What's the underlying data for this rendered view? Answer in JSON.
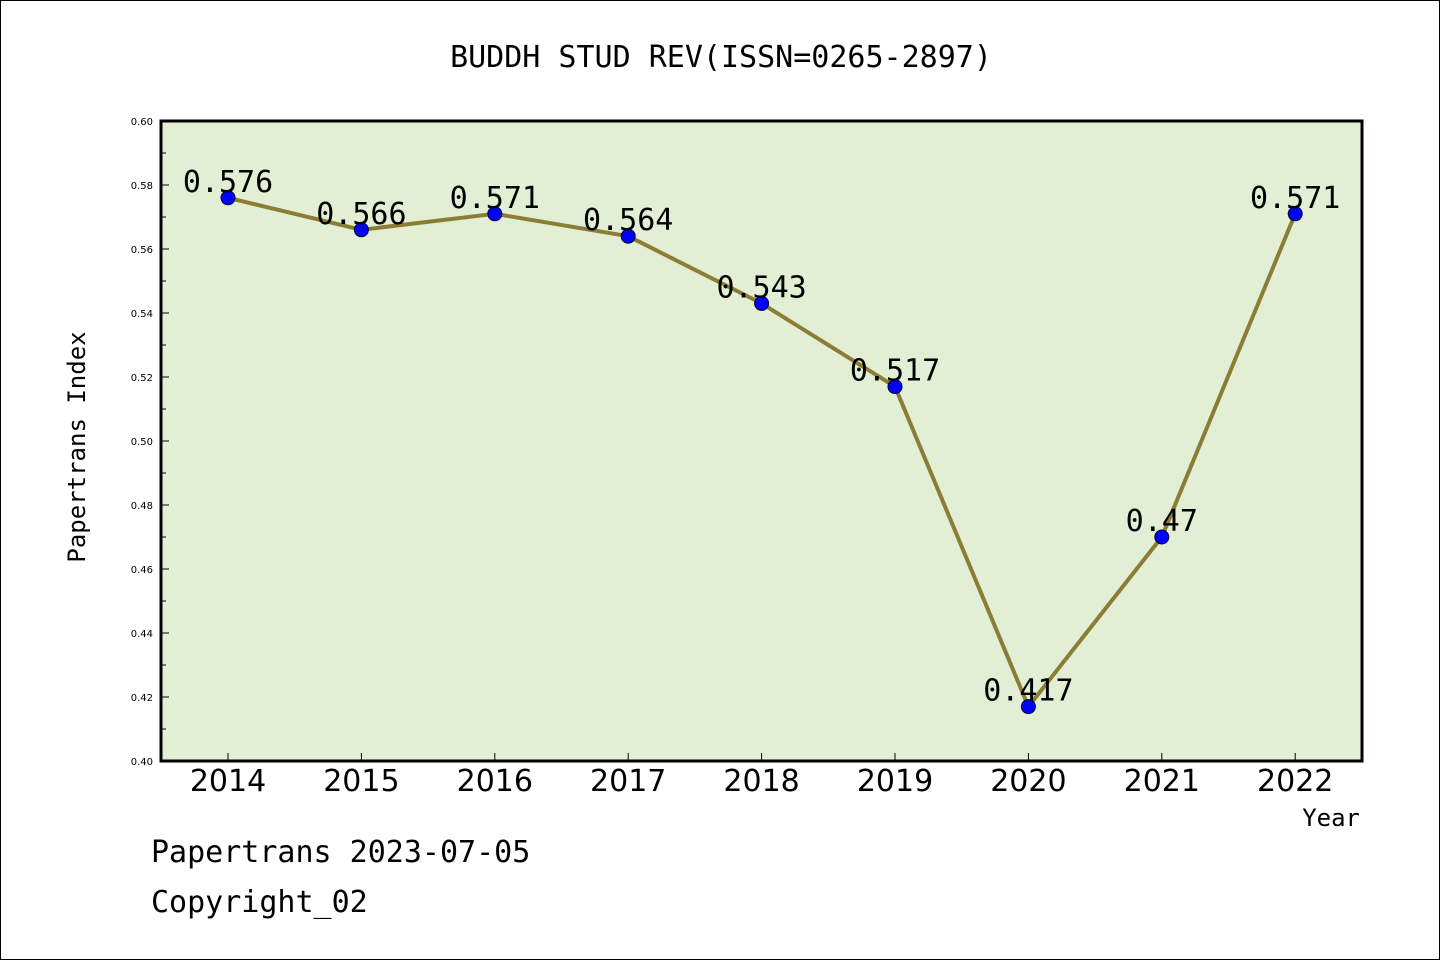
{
  "chart_data": {
    "type": "line",
    "title": "BUDDH STUD REV(ISSN=0265-2897)",
    "xlabel": "Year",
    "ylabel": "Papertrans Index",
    "categories": [
      "2014",
      "2015",
      "2016",
      "2017",
      "2018",
      "2019",
      "2020",
      "2021",
      "2022"
    ],
    "values": [
      0.576,
      0.566,
      0.571,
      0.564,
      0.543,
      0.517,
      0.417,
      0.47,
      0.571
    ],
    "data_labels": [
      "0.576",
      "0.566",
      "0.571",
      "0.564",
      "0.543",
      "0.517",
      "0.417",
      "0.47",
      "0.571"
    ],
    "ylim": [
      0.4,
      0.6
    ],
    "yticks": [
      "0.40",
      "0.42",
      "0.44",
      "0.46",
      "0.48",
      "0.50",
      "0.52",
      "0.54",
      "0.56",
      "0.58",
      "0.60"
    ],
    "grid": false,
    "colors": {
      "plot_background": "#e2efd5",
      "line": "#8c7d34",
      "marker": "#0000ff"
    }
  },
  "footer": {
    "line1": "Papertrans 2023-07-05",
    "line2": "Copyright_02"
  }
}
